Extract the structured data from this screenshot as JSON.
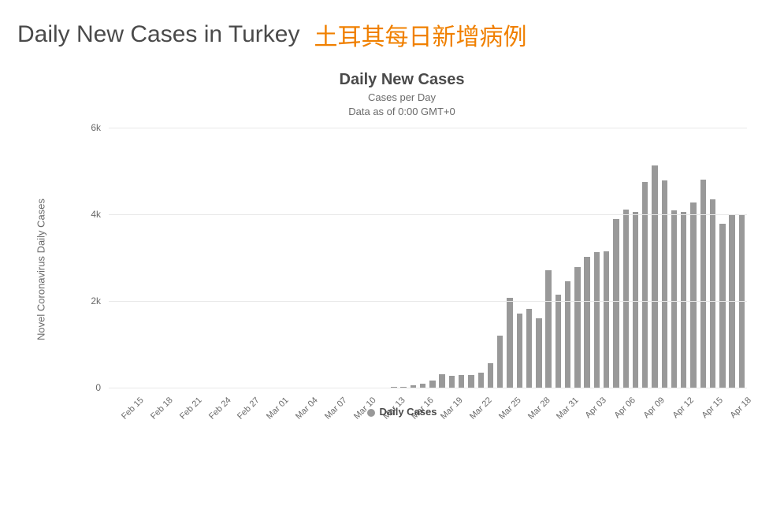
{
  "header": {
    "english": "Daily New Cases in Turkey",
    "chinese": "土耳其每日新增病例",
    "english_color": "#4a4a4a",
    "chinese_color": "#f08000",
    "fontsize": 30
  },
  "chart": {
    "type": "bar",
    "title": "Daily New Cases",
    "subtitle_line1": "Cases per Day",
    "subtitle_line2": "Data as of 0:00 GMT+0",
    "title_fontsize": 20,
    "subtitle_fontsize": 13,
    "y_axis_title": "Novel Coronavirus Daily Cases",
    "y_axis_title_fontsize": 13,
    "ylim": [
      0,
      6000
    ],
    "yticks": [
      {
        "value": 0,
        "label": "0"
      },
      {
        "value": 2000,
        "label": "2k"
      },
      {
        "value": 4000,
        "label": "4k"
      },
      {
        "value": 6000,
        "label": "6k"
      }
    ],
    "bar_color": "#999999",
    "grid_color": "#e8e8e8",
    "background_color": "#ffffff",
    "tick_label_color": "#6a6a6a",
    "legend_label": "Daily Cases",
    "legend_dot_color": "#999999",
    "x_tick_step": 3,
    "x_tick_rotation_deg": -45,
    "data": [
      {
        "date": "Feb 15",
        "value": 0
      },
      {
        "date": "Feb 16",
        "value": 0
      },
      {
        "date": "Feb 17",
        "value": 0
      },
      {
        "date": "Feb 18",
        "value": 0
      },
      {
        "date": "Feb 19",
        "value": 0
      },
      {
        "date": "Feb 20",
        "value": 0
      },
      {
        "date": "Feb 21",
        "value": 0
      },
      {
        "date": "Feb 22",
        "value": 0
      },
      {
        "date": "Feb 23",
        "value": 0
      },
      {
        "date": "Feb 24",
        "value": 0
      },
      {
        "date": "Feb 25",
        "value": 0
      },
      {
        "date": "Feb 26",
        "value": 0
      },
      {
        "date": "Feb 27",
        "value": 0
      },
      {
        "date": "Feb 28",
        "value": 0
      },
      {
        "date": "Feb 29",
        "value": 0
      },
      {
        "date": "Mar 01",
        "value": 0
      },
      {
        "date": "Mar 02",
        "value": 0
      },
      {
        "date": "Mar 03",
        "value": 0
      },
      {
        "date": "Mar 04",
        "value": 0
      },
      {
        "date": "Mar 05",
        "value": 0
      },
      {
        "date": "Mar 06",
        "value": 0
      },
      {
        "date": "Mar 07",
        "value": 0
      },
      {
        "date": "Mar 08",
        "value": 0
      },
      {
        "date": "Mar 09",
        "value": 0
      },
      {
        "date": "Mar 10",
        "value": 0
      },
      {
        "date": "Mar 11",
        "value": 1
      },
      {
        "date": "Mar 12",
        "value": 0
      },
      {
        "date": "Mar 13",
        "value": 4
      },
      {
        "date": "Mar 14",
        "value": 1
      },
      {
        "date": "Mar 15",
        "value": 12
      },
      {
        "date": "Mar 16",
        "value": 29
      },
      {
        "date": "Mar 17",
        "value": 51
      },
      {
        "date": "Mar 18",
        "value": 93
      },
      {
        "date": "Mar 19",
        "value": 168
      },
      {
        "date": "Mar 20",
        "value": 311
      },
      {
        "date": "Mar 21",
        "value": 277
      },
      {
        "date": "Mar 22",
        "value": 289
      },
      {
        "date": "Mar 23",
        "value": 293
      },
      {
        "date": "Mar 24",
        "value": 343
      },
      {
        "date": "Mar 25",
        "value": 561
      },
      {
        "date": "Mar 26",
        "value": 1196
      },
      {
        "date": "Mar 27",
        "value": 2069
      },
      {
        "date": "Mar 28",
        "value": 1704
      },
      {
        "date": "Mar 29",
        "value": 1815
      },
      {
        "date": "Mar 30",
        "value": 1610
      },
      {
        "date": "Mar 31",
        "value": 2704
      },
      {
        "date": "Apr 01",
        "value": 2148
      },
      {
        "date": "Apr 02",
        "value": 2456
      },
      {
        "date": "Apr 03",
        "value": 2786
      },
      {
        "date": "Apr 04",
        "value": 3013
      },
      {
        "date": "Apr 05",
        "value": 3135
      },
      {
        "date": "Apr 06",
        "value": 3148
      },
      {
        "date": "Apr 07",
        "value": 3892
      },
      {
        "date": "Apr 08",
        "value": 4117
      },
      {
        "date": "Apr 09",
        "value": 4056
      },
      {
        "date": "Apr 10",
        "value": 4747
      },
      {
        "date": "Apr 11",
        "value": 5138
      },
      {
        "date": "Apr 12",
        "value": 4789
      },
      {
        "date": "Apr 13",
        "value": 4093
      },
      {
        "date": "Apr 14",
        "value": 4062
      },
      {
        "date": "Apr 15",
        "value": 4281
      },
      {
        "date": "Apr 16",
        "value": 4801
      },
      {
        "date": "Apr 17",
        "value": 4353
      },
      {
        "date": "Apr 18",
        "value": 3783
      },
      {
        "date": "Apr 19",
        "value": 3977
      },
      {
        "date": "Apr 20",
        "value": 4000
      }
    ]
  }
}
